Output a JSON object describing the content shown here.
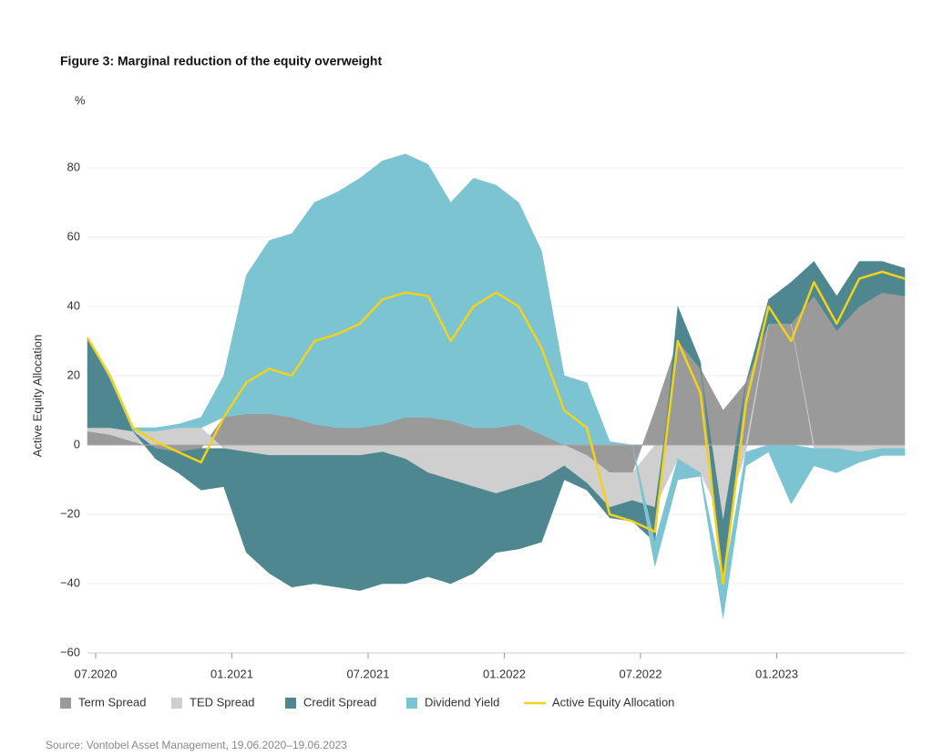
{
  "chart_data": {
    "type": "area",
    "title": "Figure 3: Marginal reduction of the equity overweight",
    "unit_label": "%",
    "y_label": "Active Equity Allocation",
    "source": "Source: Vontobel Asset Management, 19.06.2020–19.06.2023",
    "stacked": "diverging",
    "grid": true,
    "xlim": [
      2020.47,
      2023.47
    ],
    "ylim": [
      -60,
      80
    ],
    "yticks": [
      {
        "value": -60,
        "label": "−60"
      },
      {
        "value": -40,
        "label": "−40"
      },
      {
        "value": -20,
        "label": "−20"
      },
      0,
      20,
      40,
      60,
      80
    ],
    "xticks": [
      {
        "value": 2020.5,
        "label": "07.2020"
      },
      {
        "value": 2021,
        "label": "01.2021"
      },
      {
        "value": 2021.5,
        "label": "07.2021"
      },
      {
        "value": 2022,
        "label": "01.2022"
      },
      {
        "value": 2022.5,
        "label": "07.2022"
      },
      {
        "value": 2023,
        "label": "01.2023"
      }
    ],
    "x": [
      2020.47,
      2020.553,
      2020.637,
      2020.72,
      2020.803,
      2020.887,
      2020.97,
      2021.053,
      2021.137,
      2021.22,
      2021.303,
      2021.387,
      2021.47,
      2021.553,
      2021.637,
      2021.72,
      2021.803,
      2021.887,
      2021.97,
      2022.053,
      2022.137,
      2022.22,
      2022.303,
      2022.387,
      2022.47,
      2022.553,
      2022.637,
      2022.72,
      2022.803,
      2022.887,
      2022.97,
      2023.053,
      2023.137,
      2023.22,
      2023.303,
      2023.387,
      2023.47
    ],
    "series": [
      {
        "name": "Term Spread",
        "color": "#9a9a9a",
        "values": [
          4,
          3,
          1,
          -1,
          -2,
          -1,
          8,
          9,
          9,
          8,
          6,
          5,
          5,
          6,
          8,
          8,
          7,
          5,
          5,
          6,
          3,
          0,
          -3,
          -8,
          -8,
          10,
          30,
          22,
          10,
          18,
          35,
          35,
          43,
          33,
          40,
          44,
          43
        ]
      },
      {
        "name": "TED Spread",
        "color": "#cfcfcf",
        "values": [
          1,
          2,
          3,
          4,
          5,
          5,
          -1,
          -2,
          -3,
          -3,
          -3,
          -3,
          -3,
          -2,
          -4,
          -8,
          -10,
          -12,
          -14,
          -12,
          -10,
          -6,
          -8,
          -10,
          -8,
          -18,
          -4,
          -8,
          -22,
          -2,
          0,
          0,
          -1,
          -1,
          -2,
          -1,
          -1
        ]
      },
      {
        "name": "Credit Spread",
        "color": "#4f8790",
        "values": [
          26,
          14,
          0,
          -3,
          -6,
          -12,
          -11,
          -29,
          -34,
          -38,
          -37,
          -38,
          -39,
          -38,
          -36,
          -30,
          -30,
          -25,
          -17,
          -18,
          -18,
          -4,
          -2,
          -3,
          -6,
          -10,
          10,
          2,
          -18,
          0,
          7,
          12,
          10,
          10,
          13,
          9,
          8
        ]
      },
      {
        "name": "Dividend Yield",
        "color": "#7cc4d2",
        "values": [
          0,
          1,
          1,
          1,
          1,
          3,
          12,
          40,
          50,
          53,
          64,
          68,
          72,
          76,
          76,
          73,
          63,
          72,
          70,
          64,
          53,
          20,
          18,
          1,
          0,
          -7,
          -6,
          -1,
          -10,
          -4,
          -2,
          -17,
          -5,
          -7,
          -3,
          -2,
          -2
        ]
      },
      {
        "name": "Active Equity Allocation",
        "color": "#f2d21b",
        "type": "line",
        "values": [
          31,
          20,
          5,
          1,
          -2,
          -5,
          8,
          18,
          22,
          20,
          30,
          32,
          35,
          42,
          44,
          43,
          30,
          40,
          44,
          40,
          28,
          10,
          5,
          -20,
          -22,
          -25,
          30,
          15,
          -40,
          12,
          40,
          30,
          47,
          35,
          48,
          50,
          48
        ]
      }
    ]
  }
}
